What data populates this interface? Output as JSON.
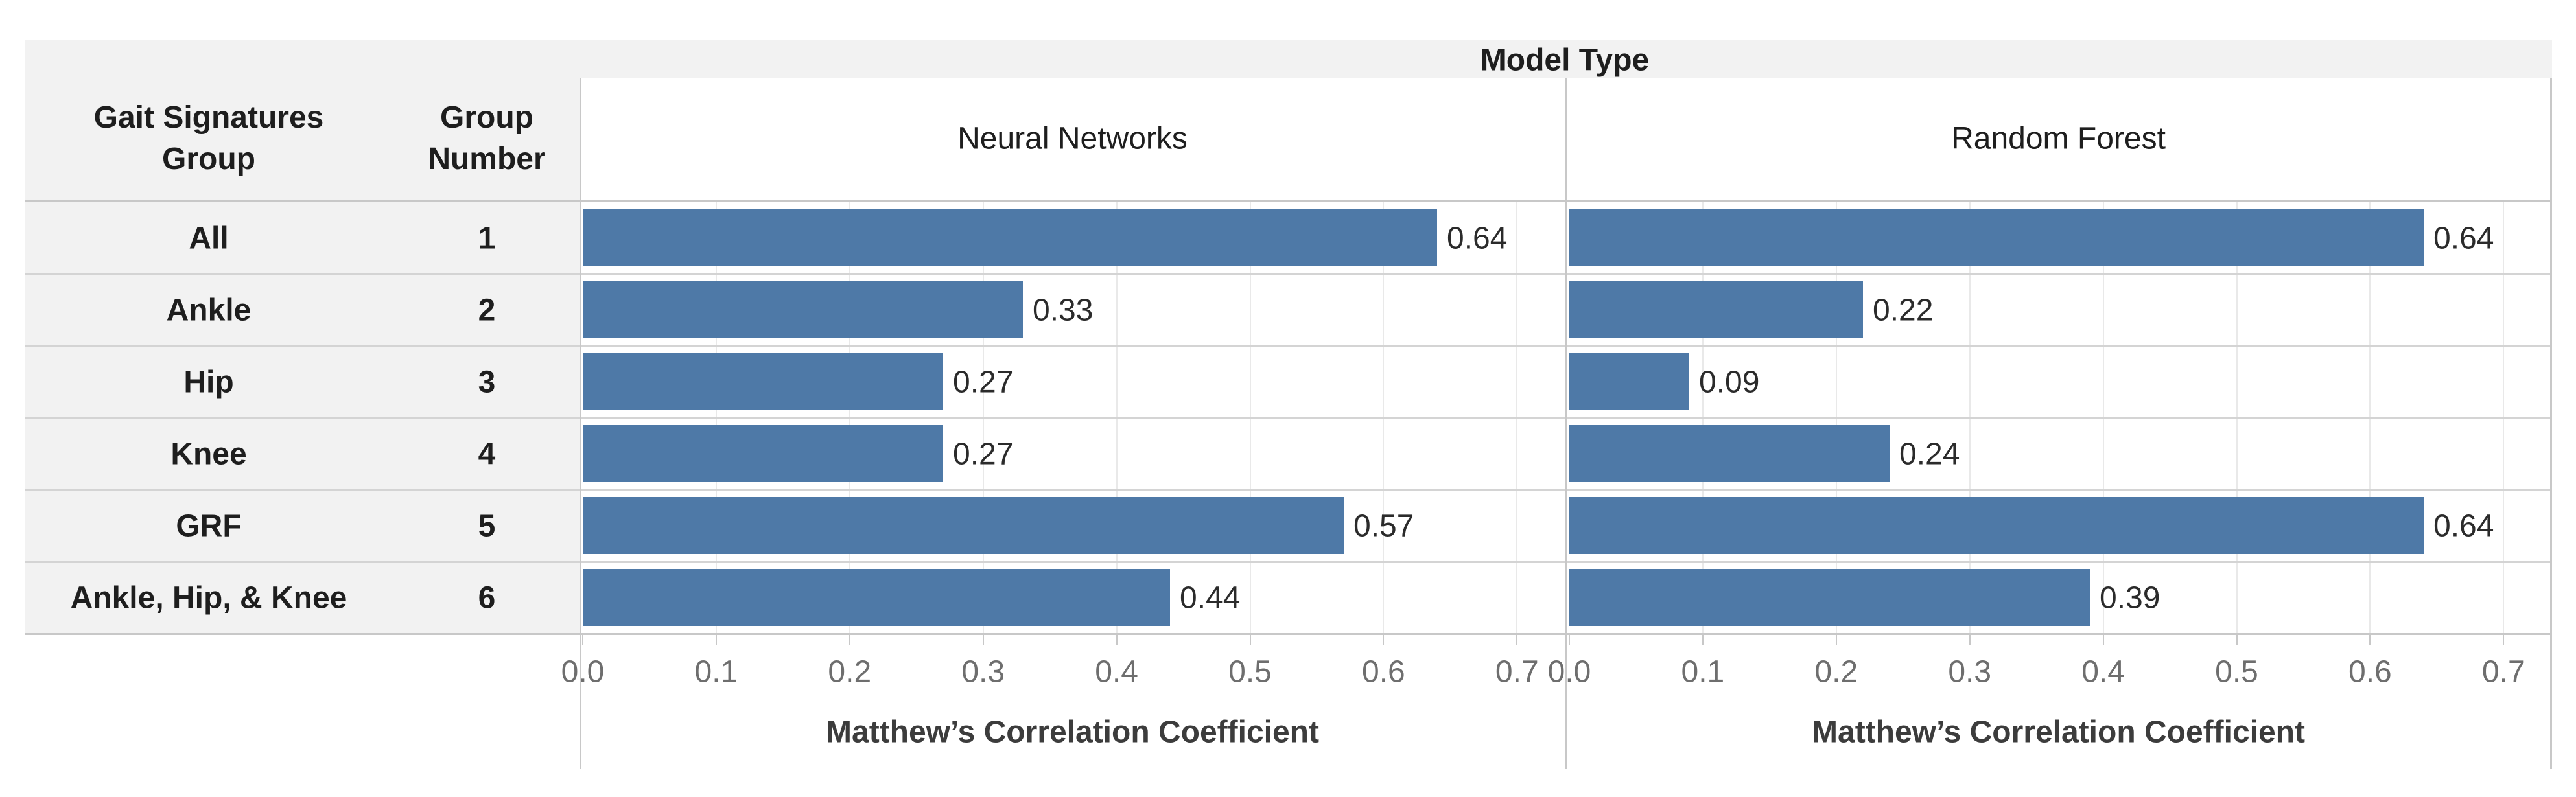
{
  "title": "Model Type",
  "table": {
    "col1_header": "Gait Signatures Group",
    "col1_header_lines": [
      "Gait Signatures",
      "Group"
    ],
    "col2_header": "Group Number",
    "col2_header_lines": [
      "Group",
      "Number"
    ]
  },
  "axis": {
    "title": "Matthew’s Correlation Coefficient",
    "tick_labels": [
      "0.0",
      "0.1",
      "0.2",
      "0.3",
      "0.4",
      "0.5",
      "0.6",
      "0.7"
    ],
    "ticks": [
      0.0,
      0.1,
      0.2,
      0.3,
      0.4,
      0.5,
      0.6,
      0.7
    ]
  },
  "chart_data": {
    "type": "bar",
    "orientation": "horizontal",
    "title": "Model Type",
    "categories": [
      "All",
      "Ankle",
      "Hip",
      "Knee",
      "GRF",
      "Ankle, Hip, & Knee"
    ],
    "group_numbers": [
      "1",
      "2",
      "3",
      "4",
      "5",
      "6"
    ],
    "row_header_titles": [
      "Gait Signatures Group",
      "Group Number"
    ],
    "series": [
      {
        "name": "Neural Networks",
        "values": [
          0.64,
          0.33,
          0.27,
          0.27,
          0.57,
          0.44
        ],
        "value_labels": [
          "0.64",
          "0.33",
          "0.27",
          "0.27",
          "0.57",
          "0.44"
        ]
      },
      {
        "name": "Random Forest",
        "values": [
          0.64,
          0.22,
          0.09,
          0.24,
          0.64,
          0.39
        ],
        "value_labels": [
          "0.64",
          "0.22",
          "0.09",
          "0.24",
          "0.64",
          "0.39"
        ]
      }
    ],
    "xlabel": "Matthew’s Correlation Coefficient",
    "ylabel": "",
    "xlim": [
      0,
      0.74
    ],
    "xticks": [
      0.0,
      0.1,
      0.2,
      0.3,
      0.4,
      0.5,
      0.6,
      0.7
    ],
    "grid": true,
    "legend": false
  },
  "colors": {
    "bar": "#4e79a7",
    "band_bg": "#f2f2f2",
    "pane_bg": "#ffffff",
    "gridline": "#e9e9e9",
    "line": "#c8c8c8",
    "row_line": "#d4d4d4",
    "header_text": "#1e1e1e",
    "value_text": "#2b2b2b",
    "tick_text": "#6e6e6e",
    "axis_title_text": "#3c3c3c"
  }
}
